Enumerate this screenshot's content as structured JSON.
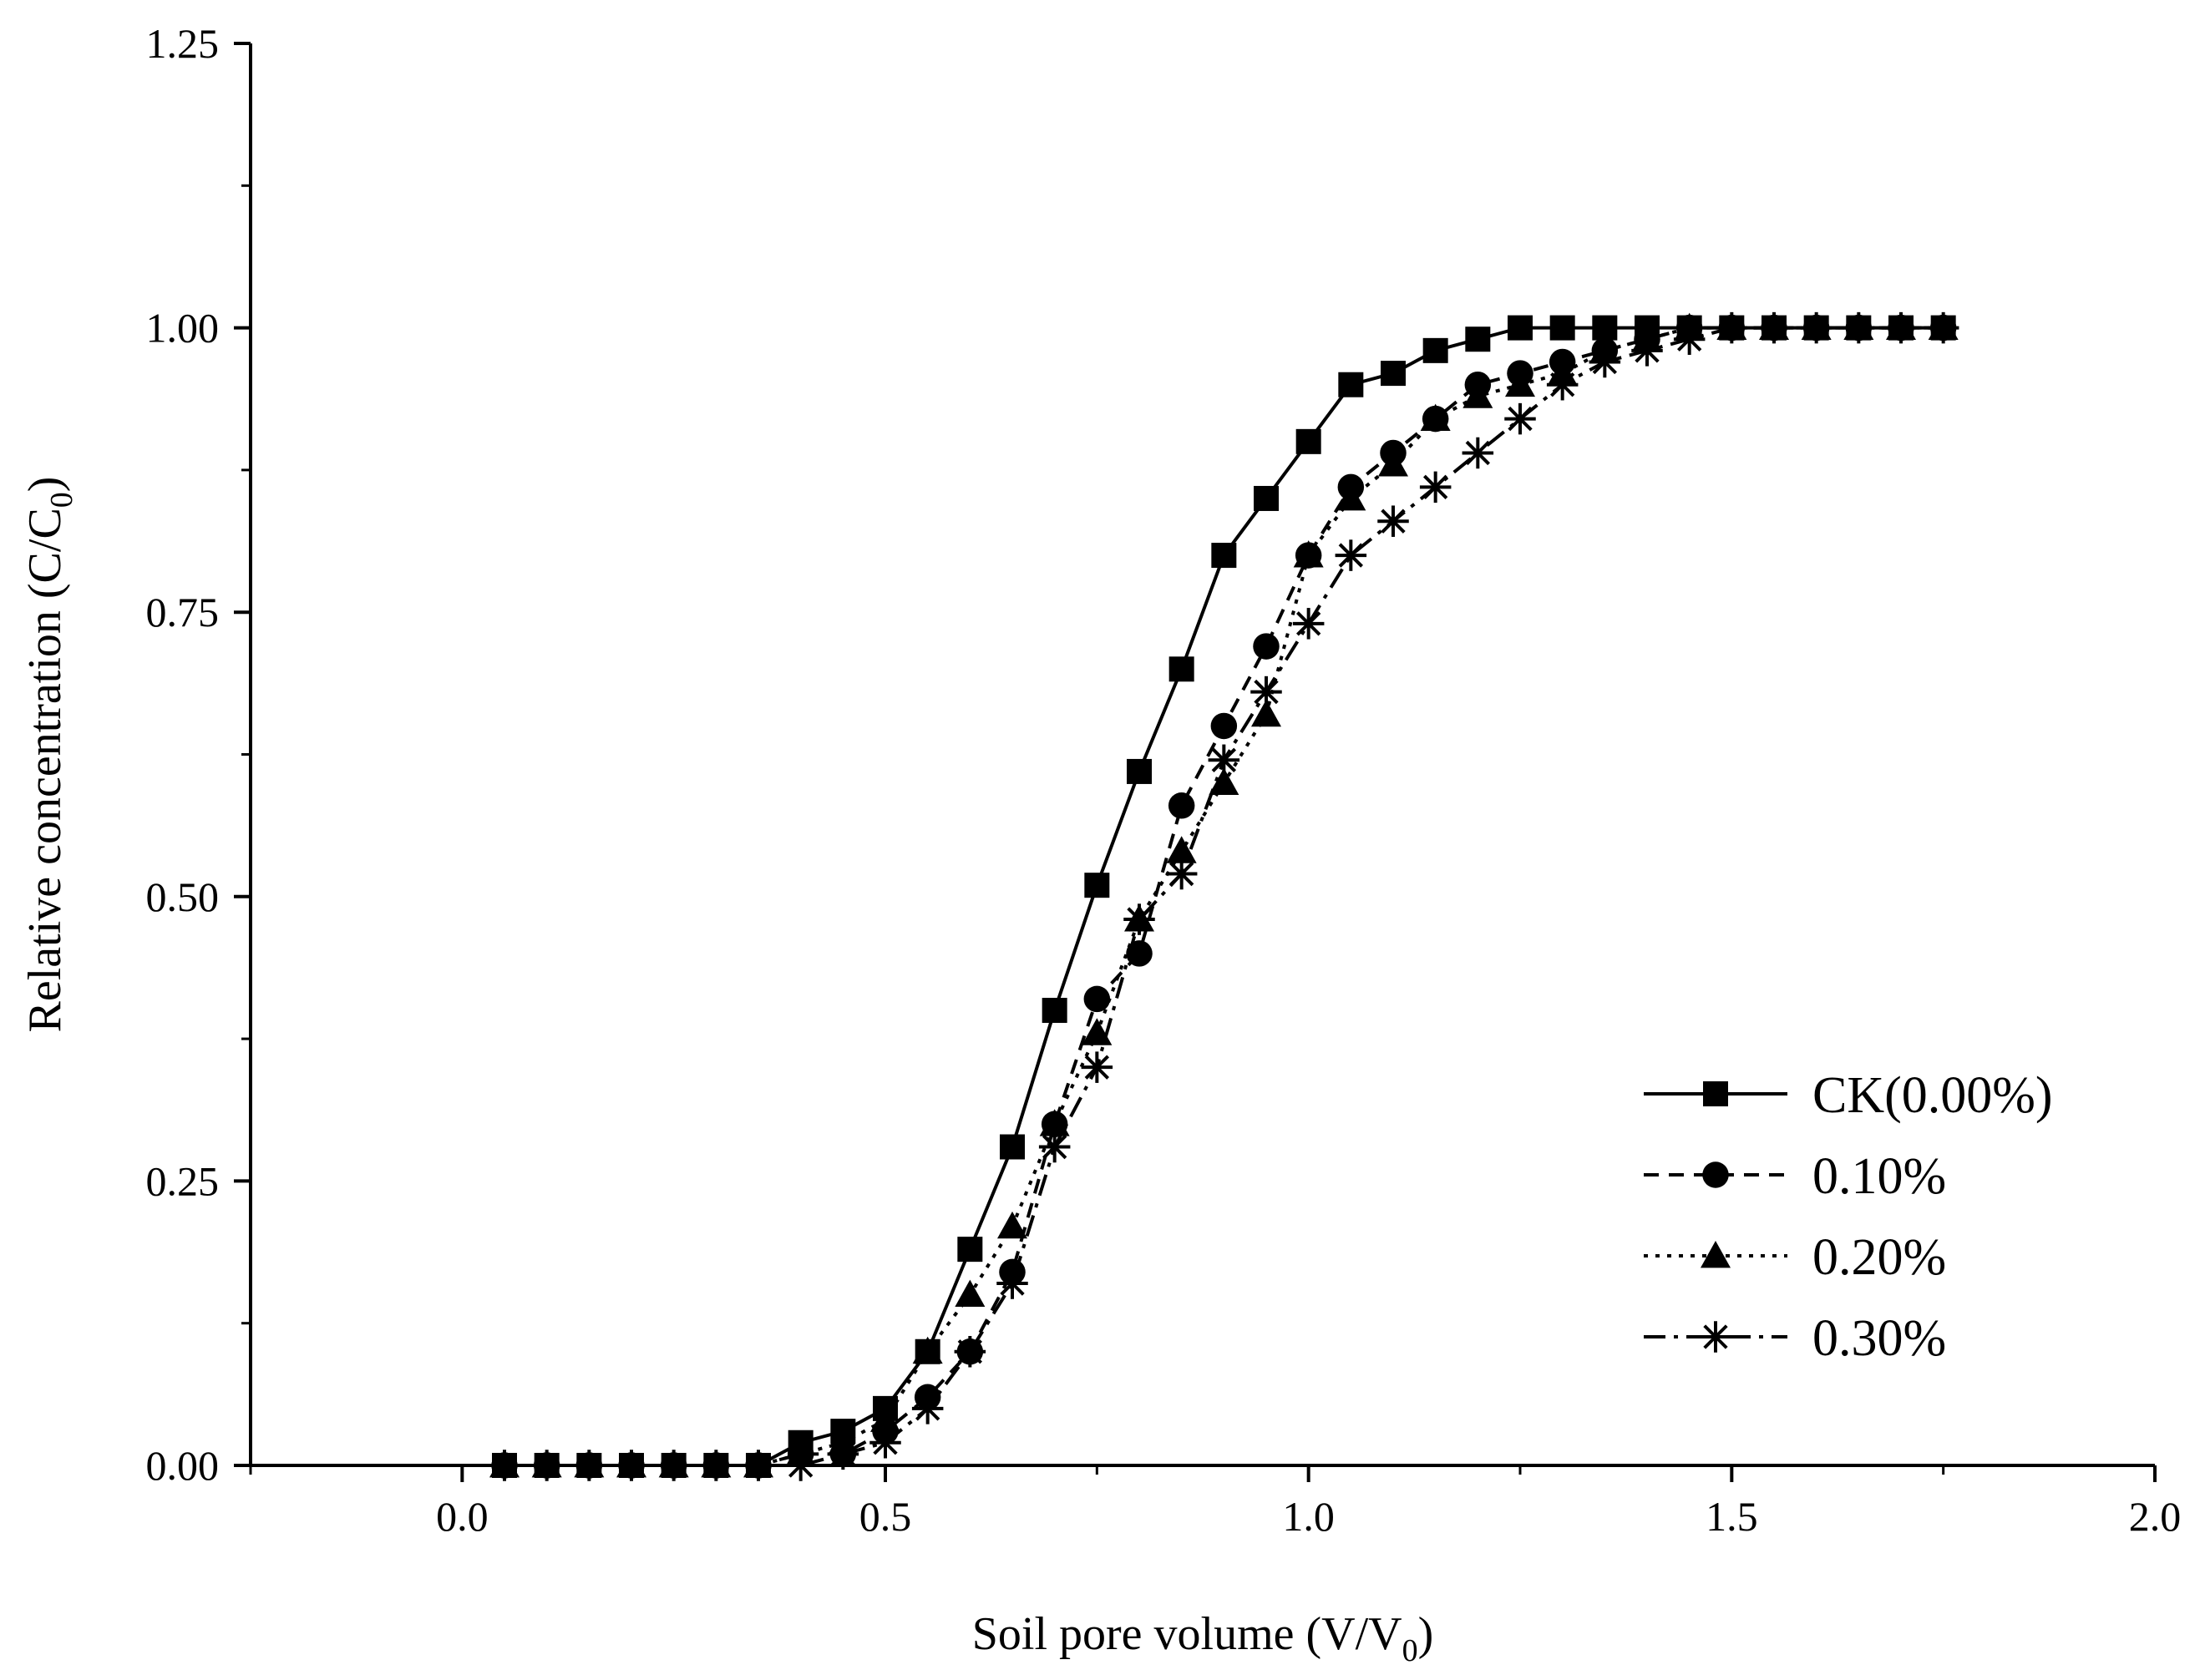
{
  "chart_data": {
    "type": "line",
    "title": "",
    "xlabel": {
      "main": "Soil pore volume (V/V",
      "sub": "0",
      "close": ")"
    },
    "ylabel": {
      "main": "Relative concentration (C/C",
      "sub": "0",
      "close": ")"
    },
    "xlim": [
      -0.25,
      2.0
    ],
    "ylim": [
      0,
      1.25
    ],
    "x_ticks": [
      "0.0",
      "0.5",
      "1.0",
      "1.5",
      "2.0"
    ],
    "y_ticks": [
      "0.00",
      "0.25",
      "0.50",
      "0.75",
      "1.00",
      "1.25"
    ],
    "x_tick_values": [
      0.0,
      0.5,
      1.0,
      1.5,
      2.0
    ],
    "y_tick_values": [
      0.0,
      0.25,
      0.5,
      0.75,
      1.0,
      1.25
    ],
    "grid": false,
    "legend_position": "bottom-right",
    "x": [
      0.05,
      0.1,
      0.15,
      0.2,
      0.25,
      0.3,
      0.35,
      0.4,
      0.45,
      0.5,
      0.55,
      0.6,
      0.65,
      0.7,
      0.75,
      0.8,
      0.85,
      0.9,
      0.95,
      1.0,
      1.05,
      1.1,
      1.15,
      1.2,
      1.25,
      1.3,
      1.35,
      1.4,
      1.45,
      1.5,
      1.55,
      1.6,
      1.65,
      1.7,
      1.75
    ],
    "series": [
      {
        "name": "CK(0.00%)",
        "marker": "square",
        "dash": "solid",
        "values": [
          0,
          0,
          0,
          0,
          0,
          0,
          0,
          0.02,
          0.03,
          0.05,
          0.1,
          0.19,
          0.28,
          0.4,
          0.51,
          0.61,
          0.7,
          0.8,
          0.85,
          0.9,
          0.95,
          0.96,
          0.98,
          0.99,
          1.0,
          1.0,
          1.0,
          1.0,
          1.0,
          1.0,
          1.0,
          1.0,
          1.0,
          1.0,
          1.0
        ]
      },
      {
        "name": "0.10%",
        "marker": "circle",
        "dash": "dashed",
        "values": [
          0,
          0,
          0,
          0,
          0,
          0,
          0,
          0.01,
          0.01,
          0.03,
          0.06,
          0.1,
          0.17,
          0.3,
          0.41,
          0.45,
          0.58,
          0.65,
          0.72,
          0.8,
          0.86,
          0.89,
          0.92,
          0.95,
          0.96,
          0.97,
          0.98,
          0.99,
          1.0,
          1.0,
          1.0,
          1.0,
          1.0,
          1.0,
          1.0
        ]
      },
      {
        "name": "0.20%",
        "marker": "triangle",
        "dash": "dotted",
        "values": [
          0,
          0,
          0,
          0,
          0,
          0,
          0,
          0.01,
          0.02,
          0.04,
          0.1,
          0.15,
          0.21,
          0.3,
          0.38,
          0.48,
          0.54,
          0.6,
          0.66,
          0.8,
          0.85,
          0.88,
          0.92,
          0.94,
          0.95,
          0.96,
          0.98,
          0.99,
          1.0,
          1.0,
          1.0,
          1.0,
          1.0,
          1.0,
          1.0
        ]
      },
      {
        "name": "0.30%",
        "marker": "star",
        "dash": "dashdot",
        "values": [
          0,
          0,
          0,
          0,
          0,
          0,
          0,
          0,
          0.01,
          0.02,
          0.05,
          0.1,
          0.16,
          0.28,
          0.35,
          0.48,
          0.52,
          0.62,
          0.68,
          0.74,
          0.8,
          0.83,
          0.86,
          0.89,
          0.92,
          0.95,
          0.97,
          0.98,
          0.99,
          1.0,
          1.0,
          1.0,
          1.0,
          1.0,
          1.0
        ]
      }
    ]
  }
}
